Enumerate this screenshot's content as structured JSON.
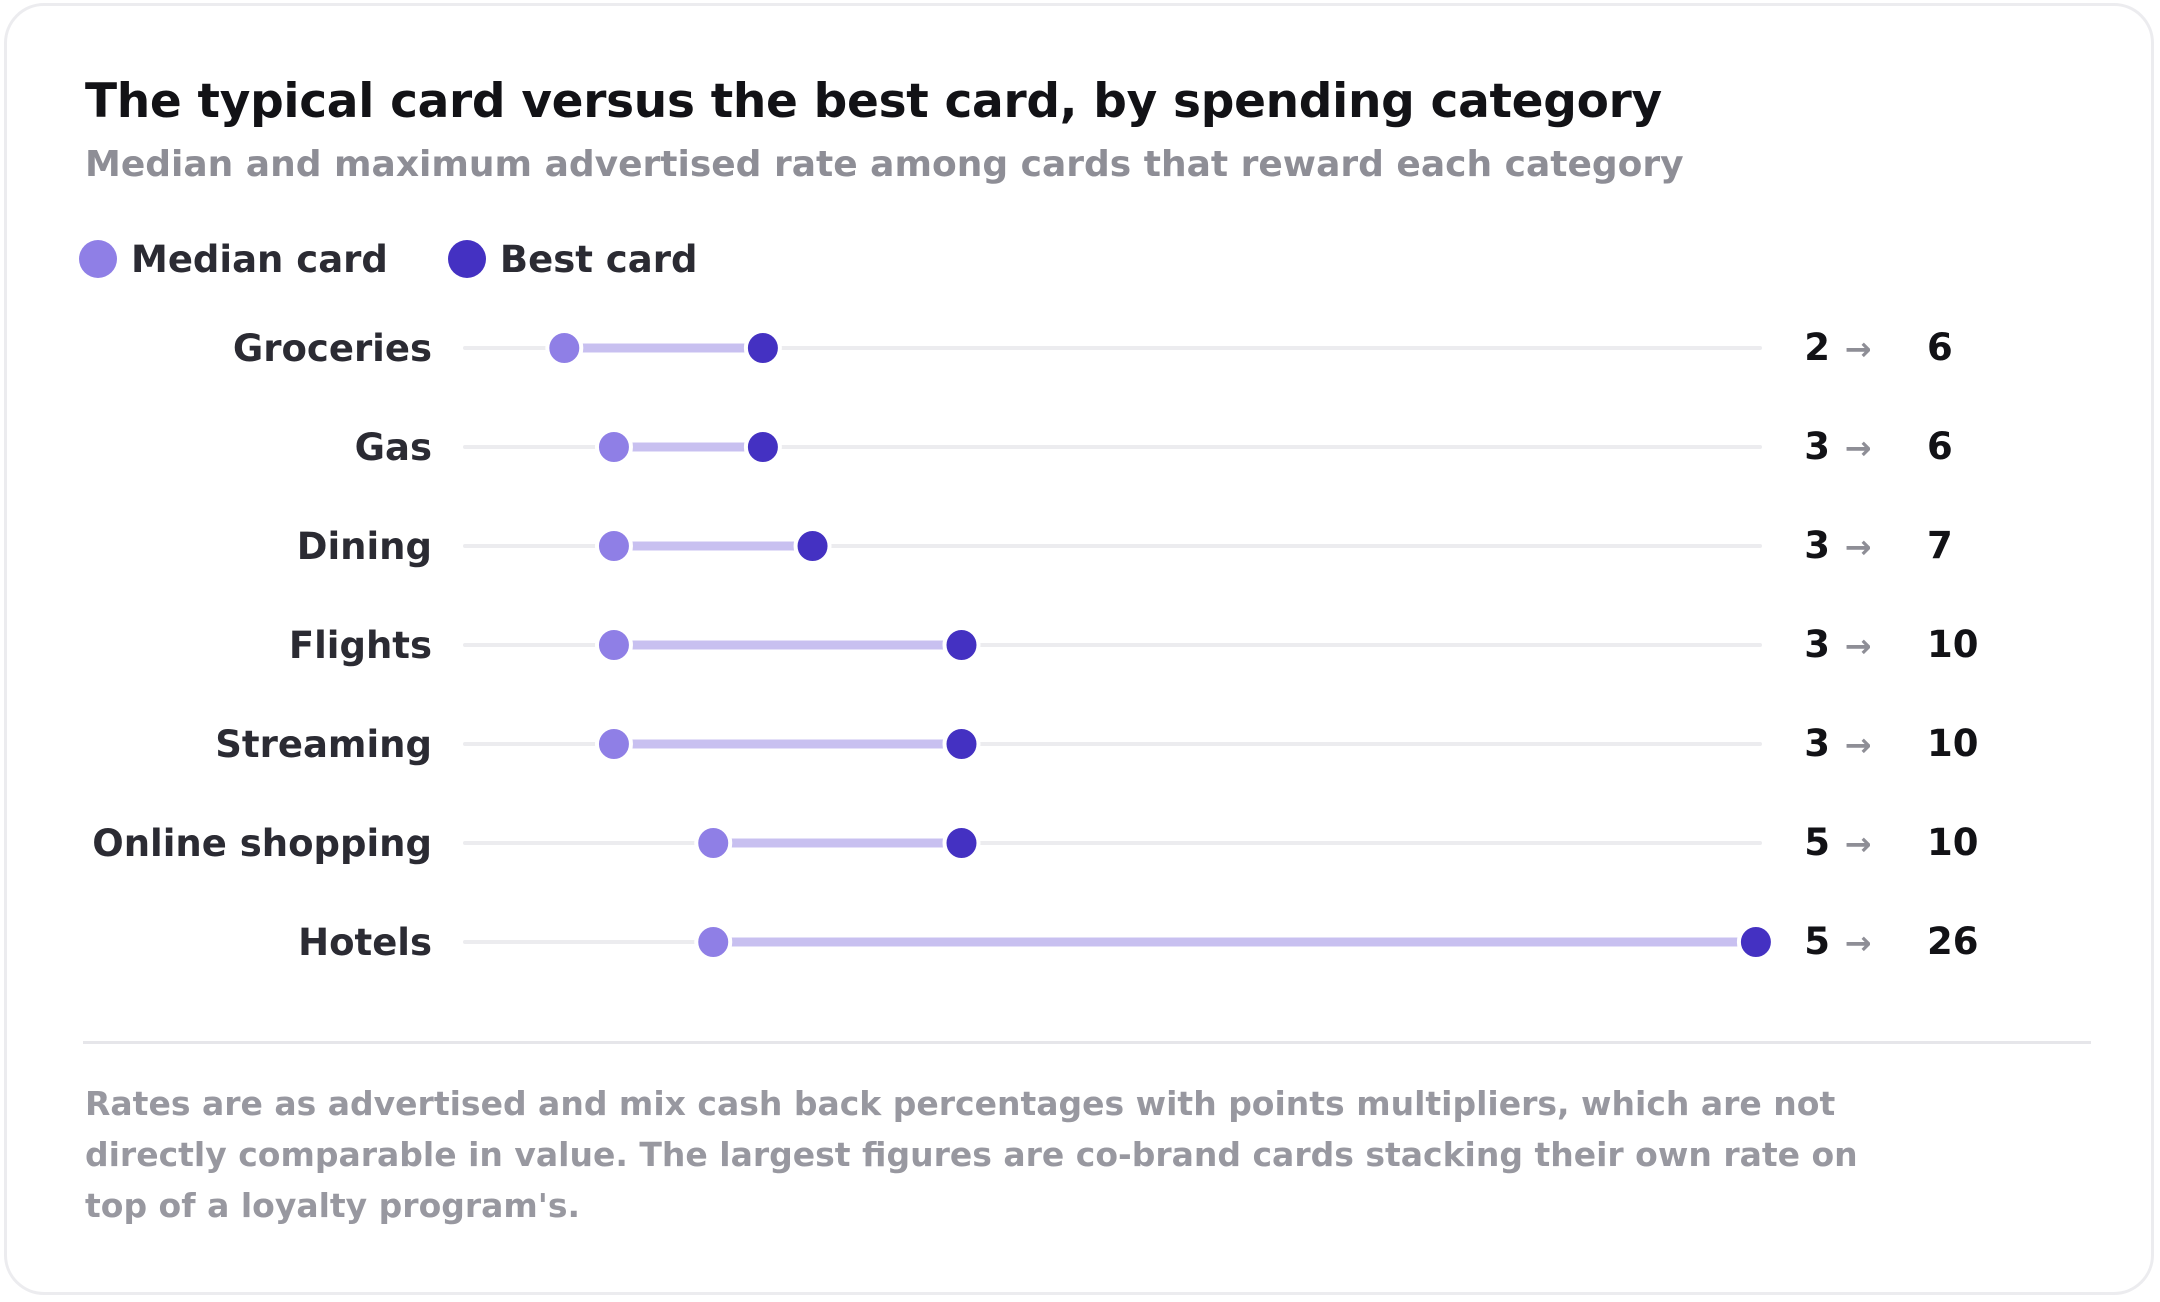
{
  "colors": {
    "median": "#8f7fe6",
    "best": "#4431c2",
    "connector": "#c8c0f0",
    "track": "#ececef",
    "arrow": "#8e8e96",
    "label": "#2b2b33",
    "value": "#121216"
  },
  "chart_data": {
    "type": "dumbbell",
    "title": "The typical card versus the best card, by spending category",
    "subtitle": "Median and maximum advertised rate among cards that reward each category",
    "legend": [
      {
        "name": "Median card",
        "color": "#8f7fe6"
      },
      {
        "name": "Best card",
        "color": "#4431c2"
      }
    ],
    "legend_placement": "top-left",
    "xlim": [
      0,
      26
    ],
    "categories": [
      "Groceries",
      "Gas",
      "Dining",
      "Flights",
      "Streaming",
      "Online shopping",
      "Hotels"
    ],
    "series": [
      {
        "name": "Median card",
        "values": [
          2,
          3,
          3,
          3,
          3,
          5,
          5
        ]
      },
      {
        "name": "Best card",
        "values": [
          6,
          6,
          7,
          10,
          10,
          10,
          26
        ]
      }
    ],
    "arrow_symbol": "→"
  },
  "footnote": "Rates are as advertised and mix cash back percentages with points multipliers, which are not directly comparable in value. The largest figures are co-brand cards stacking their own rate on top of a loyalty program's."
}
